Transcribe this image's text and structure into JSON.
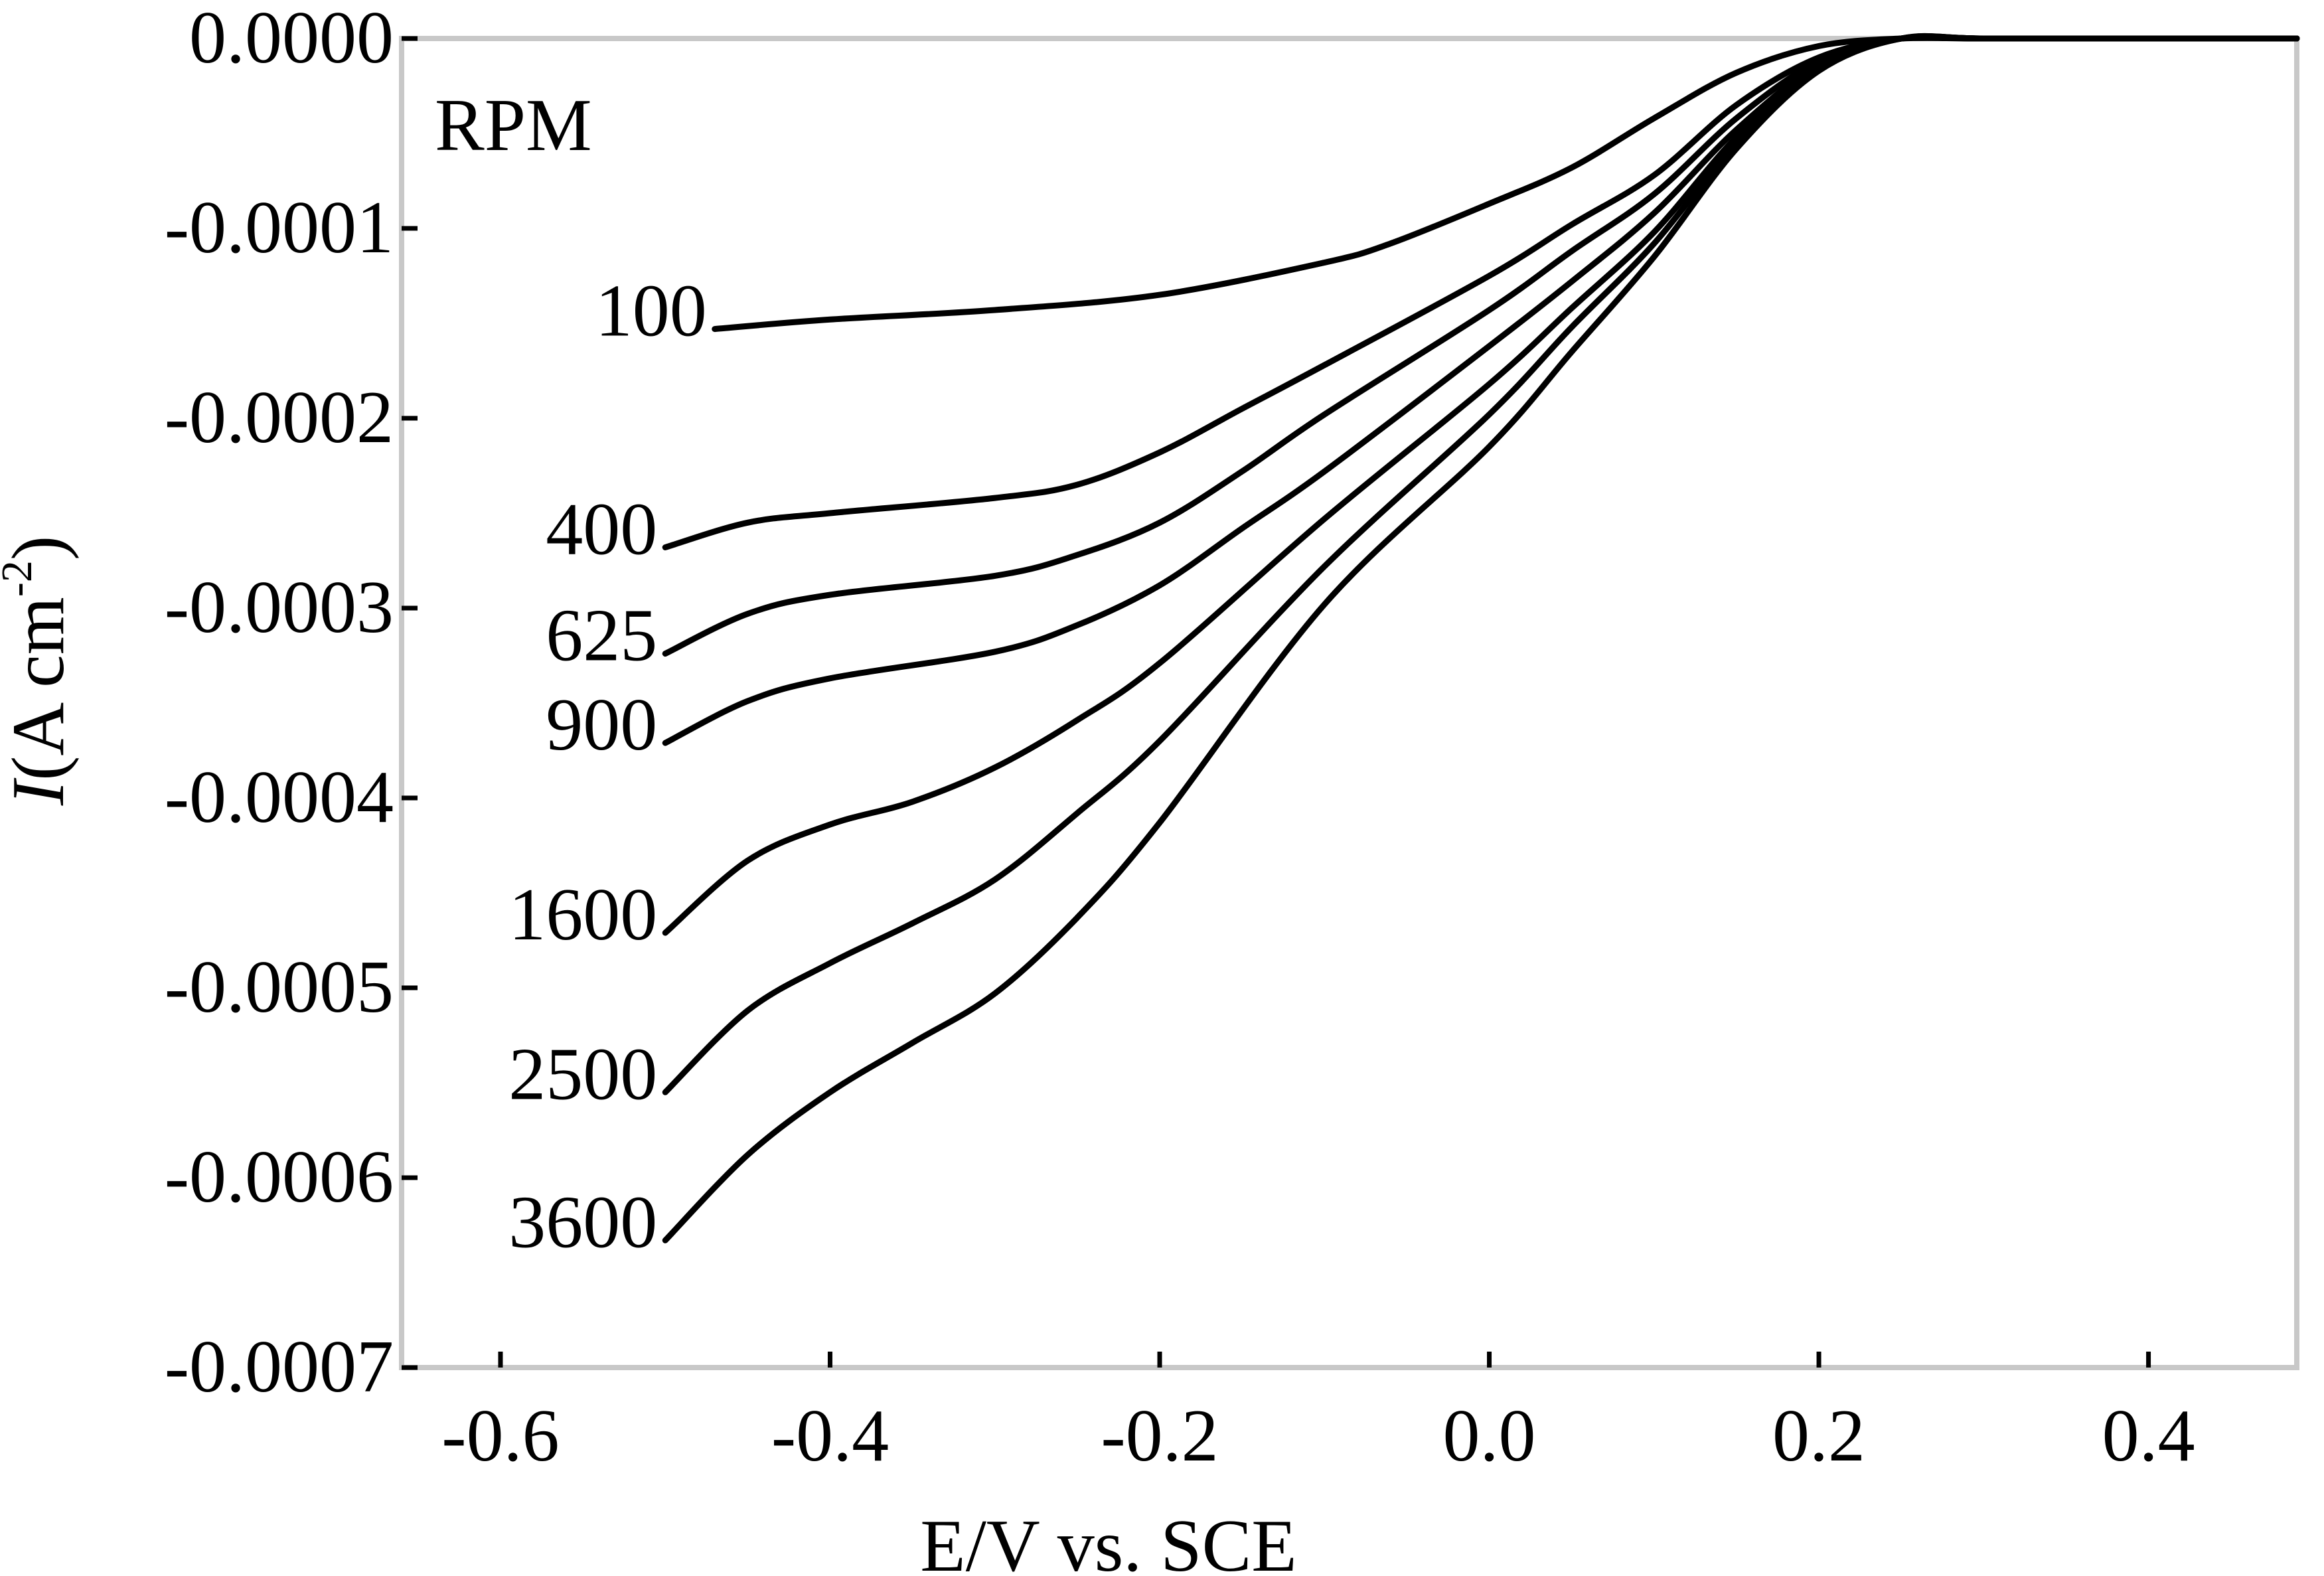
{
  "chart_data": {
    "type": "line",
    "xlabel": "E/V vs. SCE",
    "ylabel": {
      "var": "I",
      "paren_open": "(",
      "unit": "A cm",
      "exp": "-2",
      "paren_close": ")"
    },
    "xlim": [
      -0.66,
      0.49
    ],
    "ylim": [
      -0.0007,
      0.0
    ],
    "xticks": [
      -0.6,
      -0.4,
      -0.2,
      0.0,
      0.2,
      0.4
    ],
    "xtick_labels": [
      "-0.6",
      "-0.4",
      "-0.2",
      "0.0",
      "0.2",
      "0.4"
    ],
    "yticks": [
      0.0,
      -0.0001,
      -0.0002,
      -0.0003,
      -0.0004,
      -0.0005,
      -0.0006,
      -0.0007
    ],
    "ytick_labels": [
      "0.0000",
      "-0.0001",
      "-0.0002",
      "-0.0003",
      "-0.0004",
      "-0.0005",
      "-0.0006",
      "-0.0007"
    ],
    "grid": false,
    "legend_title": "RPM",
    "series": [
      {
        "name": "100",
        "x": [
          -0.47,
          -0.4,
          -0.3,
          -0.2,
          -0.1,
          -0.06,
          0.0,
          0.05,
          0.1,
          0.15,
          0.2,
          0.25,
          0.3,
          0.4,
          0.49
        ],
        "y": [
          -0.000153,
          -0.000148,
          -0.000143,
          -0.000135,
          -0.000118,
          -0.000108,
          -8.7e-05,
          -6.8e-05,
          -4.2e-05,
          -1.8e-05,
          -4e-06,
          0.0,
          0.0,
          0.0,
          0.0
        ]
      },
      {
        "name": "400",
        "x": [
          -0.5,
          -0.45,
          -0.4,
          -0.3,
          -0.25,
          -0.2,
          -0.15,
          -0.1,
          0.0,
          0.05,
          0.1,
          0.15,
          0.2,
          0.25,
          0.3,
          0.4,
          0.49
        ],
        "y": [
          -0.000268,
          -0.000255,
          -0.00025,
          -0.000242,
          -0.000235,
          -0.000218,
          -0.000195,
          -0.000172,
          -0.000125,
          -9.8e-05,
          -7.2e-05,
          -3.5e-05,
          -1e-05,
          0.0,
          0.0,
          0.0,
          0.0
        ]
      },
      {
        "name": "625",
        "x": [
          -0.5,
          -0.45,
          -0.4,
          -0.3,
          -0.25,
          -0.2,
          -0.15,
          -0.1,
          0.0,
          0.05,
          0.1,
          0.15,
          0.2,
          0.25,
          0.3,
          0.4,
          0.49
        ],
        "y": [
          -0.000324,
          -0.000303,
          -0.000293,
          -0.000283,
          -0.000272,
          -0.000255,
          -0.000228,
          -0.000198,
          -0.000143,
          -0.000112,
          -8.2e-05,
          -4.2e-05,
          -1.2e-05,
          0.0,
          0.0,
          0.0,
          0.0
        ]
      },
      {
        "name": "900",
        "x": [
          -0.5,
          -0.45,
          -0.4,
          -0.3,
          -0.25,
          -0.2,
          -0.15,
          -0.1,
          0.0,
          0.05,
          0.1,
          0.15,
          0.2,
          0.25,
          0.3,
          0.4,
          0.49
        ],
        "y": [
          -0.000371,
          -0.000349,
          -0.000337,
          -0.000323,
          -0.000309,
          -0.000288,
          -0.000258,
          -0.000228,
          -0.000162,
          -0.000128,
          -9.2e-05,
          -4.8e-05,
          -1.4e-05,
          0.0,
          0.0,
          0.0,
          0.0
        ]
      },
      {
        "name": "1600",
        "x": [
          -0.5,
          -0.45,
          -0.4,
          -0.35,
          -0.3,
          -0.25,
          -0.2,
          -0.1,
          0.0,
          0.05,
          0.1,
          0.15,
          0.2,
          0.25,
          0.3,
          0.4,
          0.49
        ],
        "y": [
          -0.000471,
          -0.000433,
          -0.000414,
          -0.000402,
          -0.000384,
          -0.000359,
          -0.000329,
          -0.000253,
          -0.000182,
          -0.000142,
          -0.000102,
          -5.2e-05,
          -1.5e-05,
          0.0,
          0.0,
          0.0,
          0.0
        ]
      },
      {
        "name": "2500",
        "x": [
          -0.5,
          -0.45,
          -0.4,
          -0.35,
          -0.3,
          -0.25,
          -0.2,
          -0.1,
          0.0,
          0.05,
          0.1,
          0.15,
          0.2,
          0.25,
          0.3,
          0.4,
          0.49
        ],
        "y": [
          -0.000555,
          -0.000512,
          -0.000487,
          -0.000466,
          -0.000443,
          -0.000408,
          -0.00037,
          -0.000278,
          -0.000198,
          -0.000152,
          -0.000108,
          -5.5e-05,
          -1.6e-05,
          0.0,
          0.0,
          0.0,
          0.0
        ]
      },
      {
        "name": "3600",
        "x": [
          -0.5,
          -0.45,
          -0.4,
          -0.35,
          -0.3,
          -0.25,
          -0.2,
          -0.1,
          0.0,
          0.05,
          0.1,
          0.15,
          0.2,
          0.25,
          0.3,
          0.4,
          0.49
        ],
        "y": [
          -0.000633,
          -0.000588,
          -0.000555,
          -0.000529,
          -0.000503,
          -0.000463,
          -0.000413,
          -0.000298,
          -0.000215,
          -0.000165,
          -0.000115,
          -5.8e-05,
          -1.7e-05,
          0.0,
          0.0,
          0.0,
          0.0
        ]
      }
    ]
  }
}
